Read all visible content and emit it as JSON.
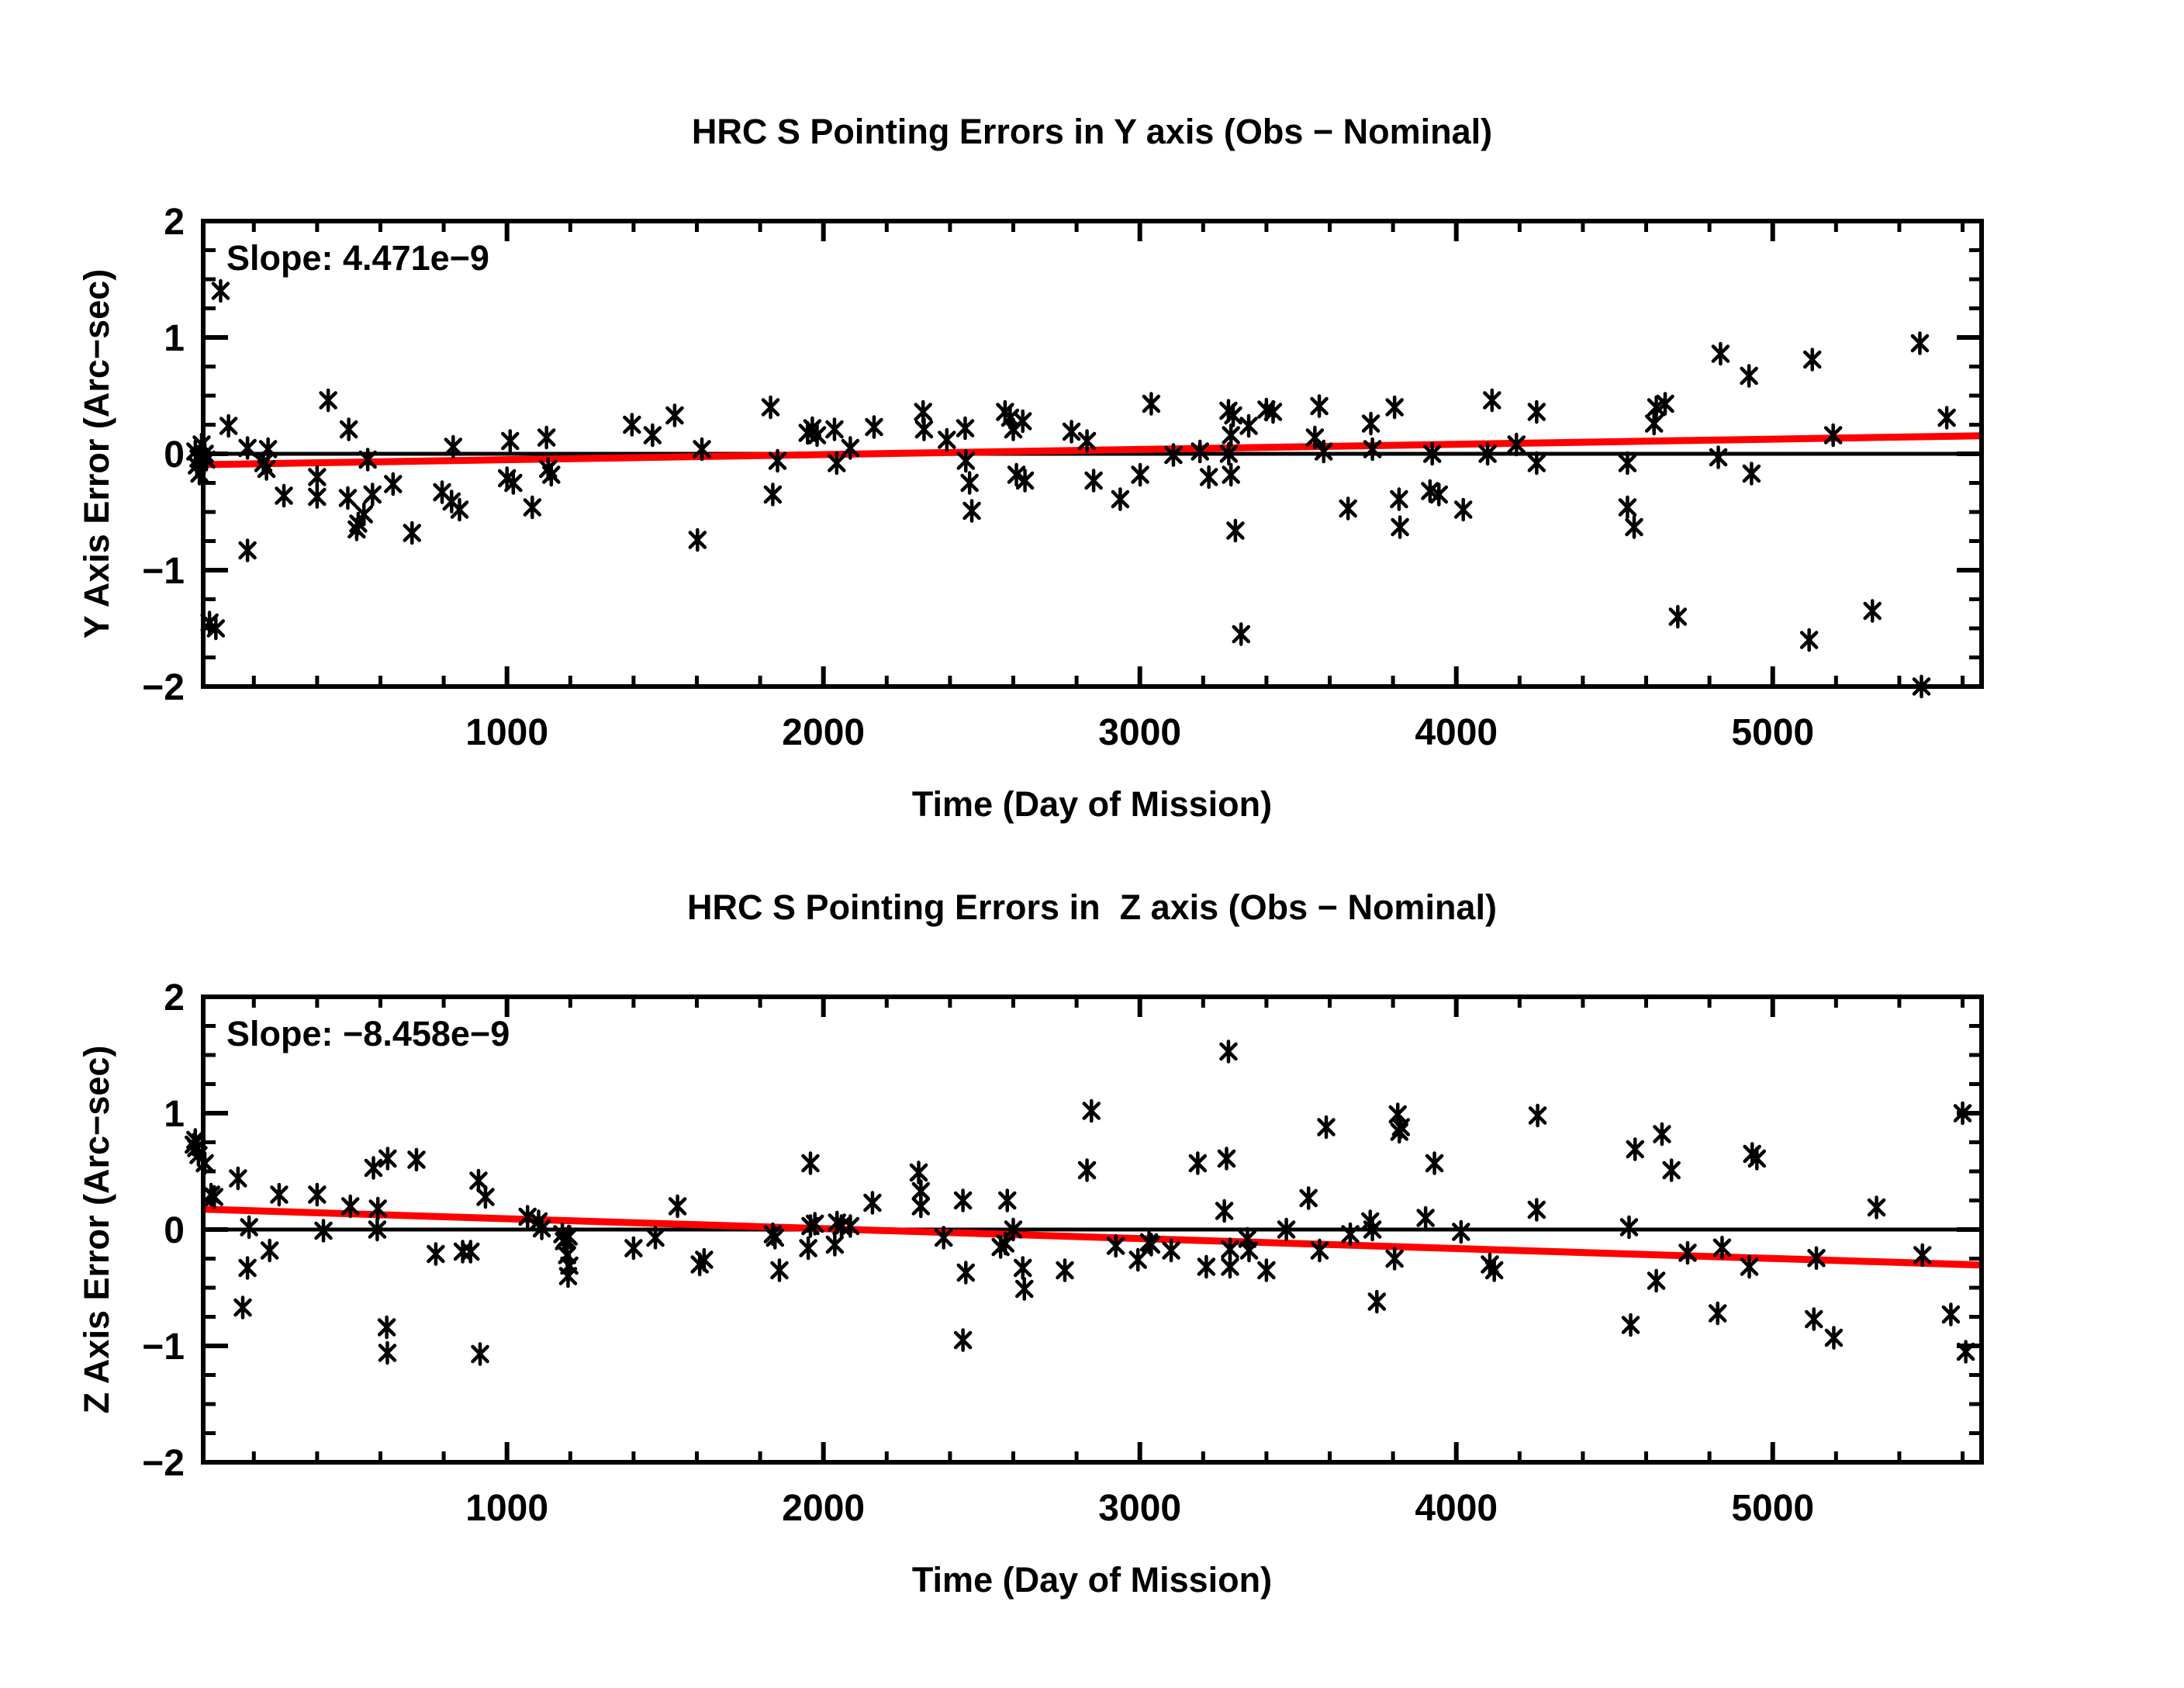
{
  "page": {
    "background": "#ffffff",
    "marker_color": "#000000",
    "axis_color": "#000000",
    "trend_color": "#ff0000"
  },
  "chart_data": [
    {
      "type": "scatter",
      "title": "HRC S Pointing Errors in Y axis (Obs − Nominal)",
      "xlabel": "Time (Day of Mission)",
      "ylabel": "Y Axis Error (Arc−sec)",
      "annotation": "Slope: 4.471e−9",
      "xlim": [
        40,
        5660
      ],
      "ylim": [
        -2,
        2
      ],
      "xticks": [
        1000,
        2000,
        3000,
        4000,
        5000
      ],
      "xtick_labels": [
        "1000",
        "2000",
        "3000",
        "4000",
        "5000"
      ],
      "yticks": [
        -2,
        -1,
        0,
        1,
        2
      ],
      "ytick_labels": [
        "−2",
        "−1",
        "0",
        "1",
        "2"
      ],
      "x_minor_step": 200,
      "y_minor_step": 0.25,
      "zero_line": 0,
      "trend": {
        "x": [
          40,
          5660
        ],
        "y": [
          -0.093,
          0.155
        ]
      },
      "points": [
        [
          15,
          0.02
        ],
        [
          25,
          -0.04
        ],
        [
          35,
          0.08
        ],
        [
          20,
          -0.1
        ],
        [
          45,
          0.0
        ],
        [
          28,
          -0.17
        ],
        [
          50,
          -0.05
        ],
        [
          95,
          1.4
        ],
        [
          60,
          -1.45
        ],
        [
          80,
          -1.5
        ],
        [
          120,
          0.24
        ],
        [
          180,
          0.05
        ],
        [
          245,
          0.04
        ],
        [
          230,
          -0.08
        ],
        [
          240,
          -0.13
        ],
        [
          180,
          -0.83
        ],
        [
          295,
          -0.36
        ],
        [
          400,
          -0.2
        ],
        [
          400,
          -0.37
        ],
        [
          435,
          0.46
        ],
        [
          500,
          0.21
        ],
        [
          497,
          -0.38
        ],
        [
          525,
          -0.65
        ],
        [
          530,
          -0.6
        ],
        [
          548,
          -0.52
        ],
        [
          560,
          -0.05
        ],
        [
          575,
          -0.35
        ],
        [
          640,
          -0.26
        ],
        [
          700,
          -0.68
        ],
        [
          830,
          0.06
        ],
        [
          795,
          -0.33
        ],
        [
          825,
          -0.41
        ],
        [
          850,
          -0.48
        ],
        [
          1010,
          0.11
        ],
        [
          1125,
          0.14
        ],
        [
          1000,
          -0.21
        ],
        [
          1020,
          -0.25
        ],
        [
          1130,
          -0.13
        ],
        [
          1140,
          -0.18
        ],
        [
          1080,
          -0.46
        ],
        [
          1395,
          0.25
        ],
        [
          1460,
          0.16
        ],
        [
          1530,
          0.33
        ],
        [
          1616,
          0.04
        ],
        [
          1602,
          -0.74
        ],
        [
          1833,
          0.4
        ],
        [
          1855,
          -0.06
        ],
        [
          1840,
          -0.35
        ],
        [
          1950,
          0.18
        ],
        [
          1965,
          0.22
        ],
        [
          1980,
          0.16
        ],
        [
          2035,
          0.21
        ],
        [
          2042,
          -0.08
        ],
        [
          2085,
          0.05
        ],
        [
          2160,
          0.23
        ],
        [
          2315,
          0.36
        ],
        [
          2318,
          0.21
        ],
        [
          2390,
          0.12
        ],
        [
          2448,
          0.22
        ],
        [
          2450,
          -0.06
        ],
        [
          2462,
          -0.25
        ],
        [
          2469,
          -0.49
        ],
        [
          2574,
          0.36
        ],
        [
          2590,
          0.31
        ],
        [
          2600,
          0.21
        ],
        [
          2630,
          0.28
        ],
        [
          2610,
          -0.18
        ],
        [
          2637,
          -0.23
        ],
        [
          2784,
          0.19
        ],
        [
          2833,
          0.11
        ],
        [
          2854,
          -0.23
        ],
        [
          2938,
          -0.39
        ],
        [
          3001,
          -0.18
        ],
        [
          3036,
          0.43
        ],
        [
          3106,
          -0.01
        ],
        [
          3190,
          0.02
        ],
        [
          3218,
          -0.2
        ],
        [
          3288,
          -0.18
        ],
        [
          3280,
          0.37
        ],
        [
          3295,
          0.33
        ],
        [
          3288,
          0.16
        ],
        [
          3281,
          0.0
        ],
        [
          3302,
          -0.66
        ],
        [
          3320,
          -1.55
        ],
        [
          3344,
          0.24
        ],
        [
          3400,
          0.38
        ],
        [
          3421,
          0.36
        ],
        [
          3567,
          0.41
        ],
        [
          3553,
          0.14
        ],
        [
          3581,
          0.02
        ],
        [
          3658,
          -0.47
        ],
        [
          3730,
          0.26
        ],
        [
          3735,
          0.04
        ],
        [
          3805,
          0.4
        ],
        [
          3819,
          -0.39
        ],
        [
          3822,
          -0.63
        ],
        [
          3924,
          0.0
        ],
        [
          3917,
          -0.32
        ],
        [
          3945,
          -0.35
        ],
        [
          4022,
          -0.48
        ],
        [
          4113,
          0.46
        ],
        [
          4099,
          0.0
        ],
        [
          4190,
          0.08
        ],
        [
          4254,
          0.36
        ],
        [
          4254,
          -0.08
        ],
        [
          4541,
          -0.08
        ],
        [
          4541,
          -0.46
        ],
        [
          4562,
          -0.63
        ],
        [
          4632,
          0.4
        ],
        [
          4660,
          0.43
        ],
        [
          4625,
          0.26
        ],
        [
          4835,
          0.86
        ],
        [
          4925,
          0.67
        ],
        [
          4828,
          -0.03
        ],
        [
          4933,
          -0.17
        ],
        [
          5125,
          0.81
        ],
        [
          5191,
          0.16
        ],
        [
          4700,
          -1.4
        ],
        [
          5115,
          -1.6
        ],
        [
          5315,
          -1.35
        ],
        [
          5465,
          0.95
        ],
        [
          5550,
          0.31
        ],
        [
          5470,
          -2.0
        ]
      ]
    },
    {
      "type": "scatter",
      "title": "HRC S Pointing Errors in  Z axis (Obs − Nominal)",
      "xlabel": "Time (Day of Mission)",
      "ylabel": "Z Axis Error (Arc−sec)",
      "annotation": "Slope: −8.458e−9",
      "xlim": [
        40,
        5660
      ],
      "ylim": [
        -2,
        2
      ],
      "xticks": [
        1000,
        2000,
        3000,
        4000,
        5000
      ],
      "xtick_labels": [
        "1000",
        "2000",
        "3000",
        "4000",
        "5000"
      ],
      "yticks": [
        -2,
        -1,
        0,
        1,
        2
      ],
      "ytick_labels": [
        "−2",
        "−1",
        "0",
        "1",
        "2"
      ],
      "x_minor_step": 200,
      "y_minor_step": 0.25,
      "zero_line": 0,
      "trend": {
        "x": [
          40,
          5660
        ],
        "y": [
          0.175,
          -0.305
        ]
      },
      "points": [
        [
          10,
          0.73
        ],
        [
          18,
          0.7
        ],
        [
          15,
          0.77
        ],
        [
          25,
          0.64
        ],
        [
          45,
          0.57
        ],
        [
          65,
          0.3
        ],
        [
          75,
          0.28
        ],
        [
          150,
          0.44
        ],
        [
          185,
          0.02
        ],
        [
          250,
          -0.18
        ],
        [
          180,
          -0.33
        ],
        [
          165,
          -0.67
        ],
        [
          280,
          0.3
        ],
        [
          400,
          0.3
        ],
        [
          420,
          -0.01
        ],
        [
          505,
          0.2
        ],
        [
          590,
          0.0
        ],
        [
          592,
          0.18
        ],
        [
          578,
          0.53
        ],
        [
          623,
          0.61
        ],
        [
          714,
          0.6
        ],
        [
          775,
          -0.21
        ],
        [
          860,
          -0.19
        ],
        [
          885,
          -0.19
        ],
        [
          910,
          0.42
        ],
        [
          932,
          0.28
        ],
        [
          620,
          -0.84
        ],
        [
          622,
          -1.06
        ],
        [
          915,
          -1.07
        ],
        [
          1065,
          0.11
        ],
        [
          1100,
          0.07
        ],
        [
          1110,
          0.01
        ],
        [
          1175,
          -0.04
        ],
        [
          1185,
          -0.08
        ],
        [
          1195,
          -0.06
        ],
        [
          1180,
          -0.1
        ],
        [
          1190,
          -0.22
        ],
        [
          1197,
          -0.31
        ],
        [
          1193,
          -0.4
        ],
        [
          1400,
          -0.16
        ],
        [
          1469,
          -0.07
        ],
        [
          1539,
          0.2
        ],
        [
          1609,
          -0.3
        ],
        [
          1623,
          -0.26
        ],
        [
          1840,
          -0.04
        ],
        [
          1847,
          -0.07
        ],
        [
          1861,
          -0.35
        ],
        [
          1959,
          0.57
        ],
        [
          1959,
          0.03
        ],
        [
          1973,
          0.05
        ],
        [
          1952,
          -0.16
        ],
        [
          2043,
          0.06
        ],
        [
          2057,
          0.03
        ],
        [
          2085,
          0.03
        ],
        [
          2036,
          -0.13
        ],
        [
          2155,
          0.23
        ],
        [
          2301,
          0.49
        ],
        [
          2308,
          0.33
        ],
        [
          2308,
          0.2
        ],
        [
          2441,
          0.25
        ],
        [
          2380,
          -0.07
        ],
        [
          2581,
          0.25
        ],
        [
          2560,
          -0.15
        ],
        [
          2575,
          -0.12
        ],
        [
          2600,
          0.0
        ],
        [
          2450,
          -0.37
        ],
        [
          2630,
          -0.33
        ],
        [
          2635,
          -0.51
        ],
        [
          2763,
          -0.35
        ],
        [
          2441,
          -0.95
        ],
        [
          2847,
          1.02
        ],
        [
          2833,
          0.51
        ],
        [
          2924,
          -0.14
        ],
        [
          2994,
          -0.26
        ],
        [
          3029,
          -0.11
        ],
        [
          3036,
          -0.13
        ],
        [
          3099,
          -0.18
        ],
        [
          3183,
          0.57
        ],
        [
          3280,
          1.53
        ],
        [
          3274,
          0.61
        ],
        [
          3267,
          0.16
        ],
        [
          3210,
          -0.32
        ],
        [
          3285,
          -0.32
        ],
        [
          3285,
          -0.17
        ],
        [
          3340,
          -0.08
        ],
        [
          3345,
          -0.18
        ],
        [
          3400,
          -0.35
        ],
        [
          3463,
          0.0
        ],
        [
          3533,
          0.27
        ],
        [
          3568,
          -0.18
        ],
        [
          3589,
          0.88
        ],
        [
          3665,
          -0.04
        ],
        [
          3728,
          0.07
        ],
        [
          3735,
          0.0
        ],
        [
          3749,
          -0.62
        ],
        [
          3805,
          -0.25
        ],
        [
          3815,
          0.99
        ],
        [
          3825,
          0.88
        ],
        [
          3820,
          0.84
        ],
        [
          3903,
          0.1
        ],
        [
          3931,
          0.57
        ],
        [
          4015,
          -0.02
        ],
        [
          4106,
          -0.3
        ],
        [
          4120,
          -0.35
        ],
        [
          4257,
          0.98
        ],
        [
          4254,
          0.17
        ],
        [
          4546,
          0.02
        ],
        [
          4565,
          0.69
        ],
        [
          4650,
          0.82
        ],
        [
          4680,
          0.51
        ],
        [
          4935,
          0.65
        ],
        [
          4950,
          0.61
        ],
        [
          4731,
          -0.2
        ],
        [
          4840,
          -0.155
        ],
        [
          4926,
          -0.32
        ],
        [
          4632,
          -0.44
        ],
        [
          5138,
          -0.245
        ],
        [
          5328,
          0.19
        ],
        [
          5473,
          -0.22
        ],
        [
          4826,
          -0.72
        ],
        [
          4551,
          -0.82
        ],
        [
          5130,
          -0.77
        ],
        [
          5193,
          -0.93
        ],
        [
          5563,
          -0.73
        ],
        [
          5600,
          1.0
        ],
        [
          5610,
          -1.05
        ]
      ]
    }
  ]
}
